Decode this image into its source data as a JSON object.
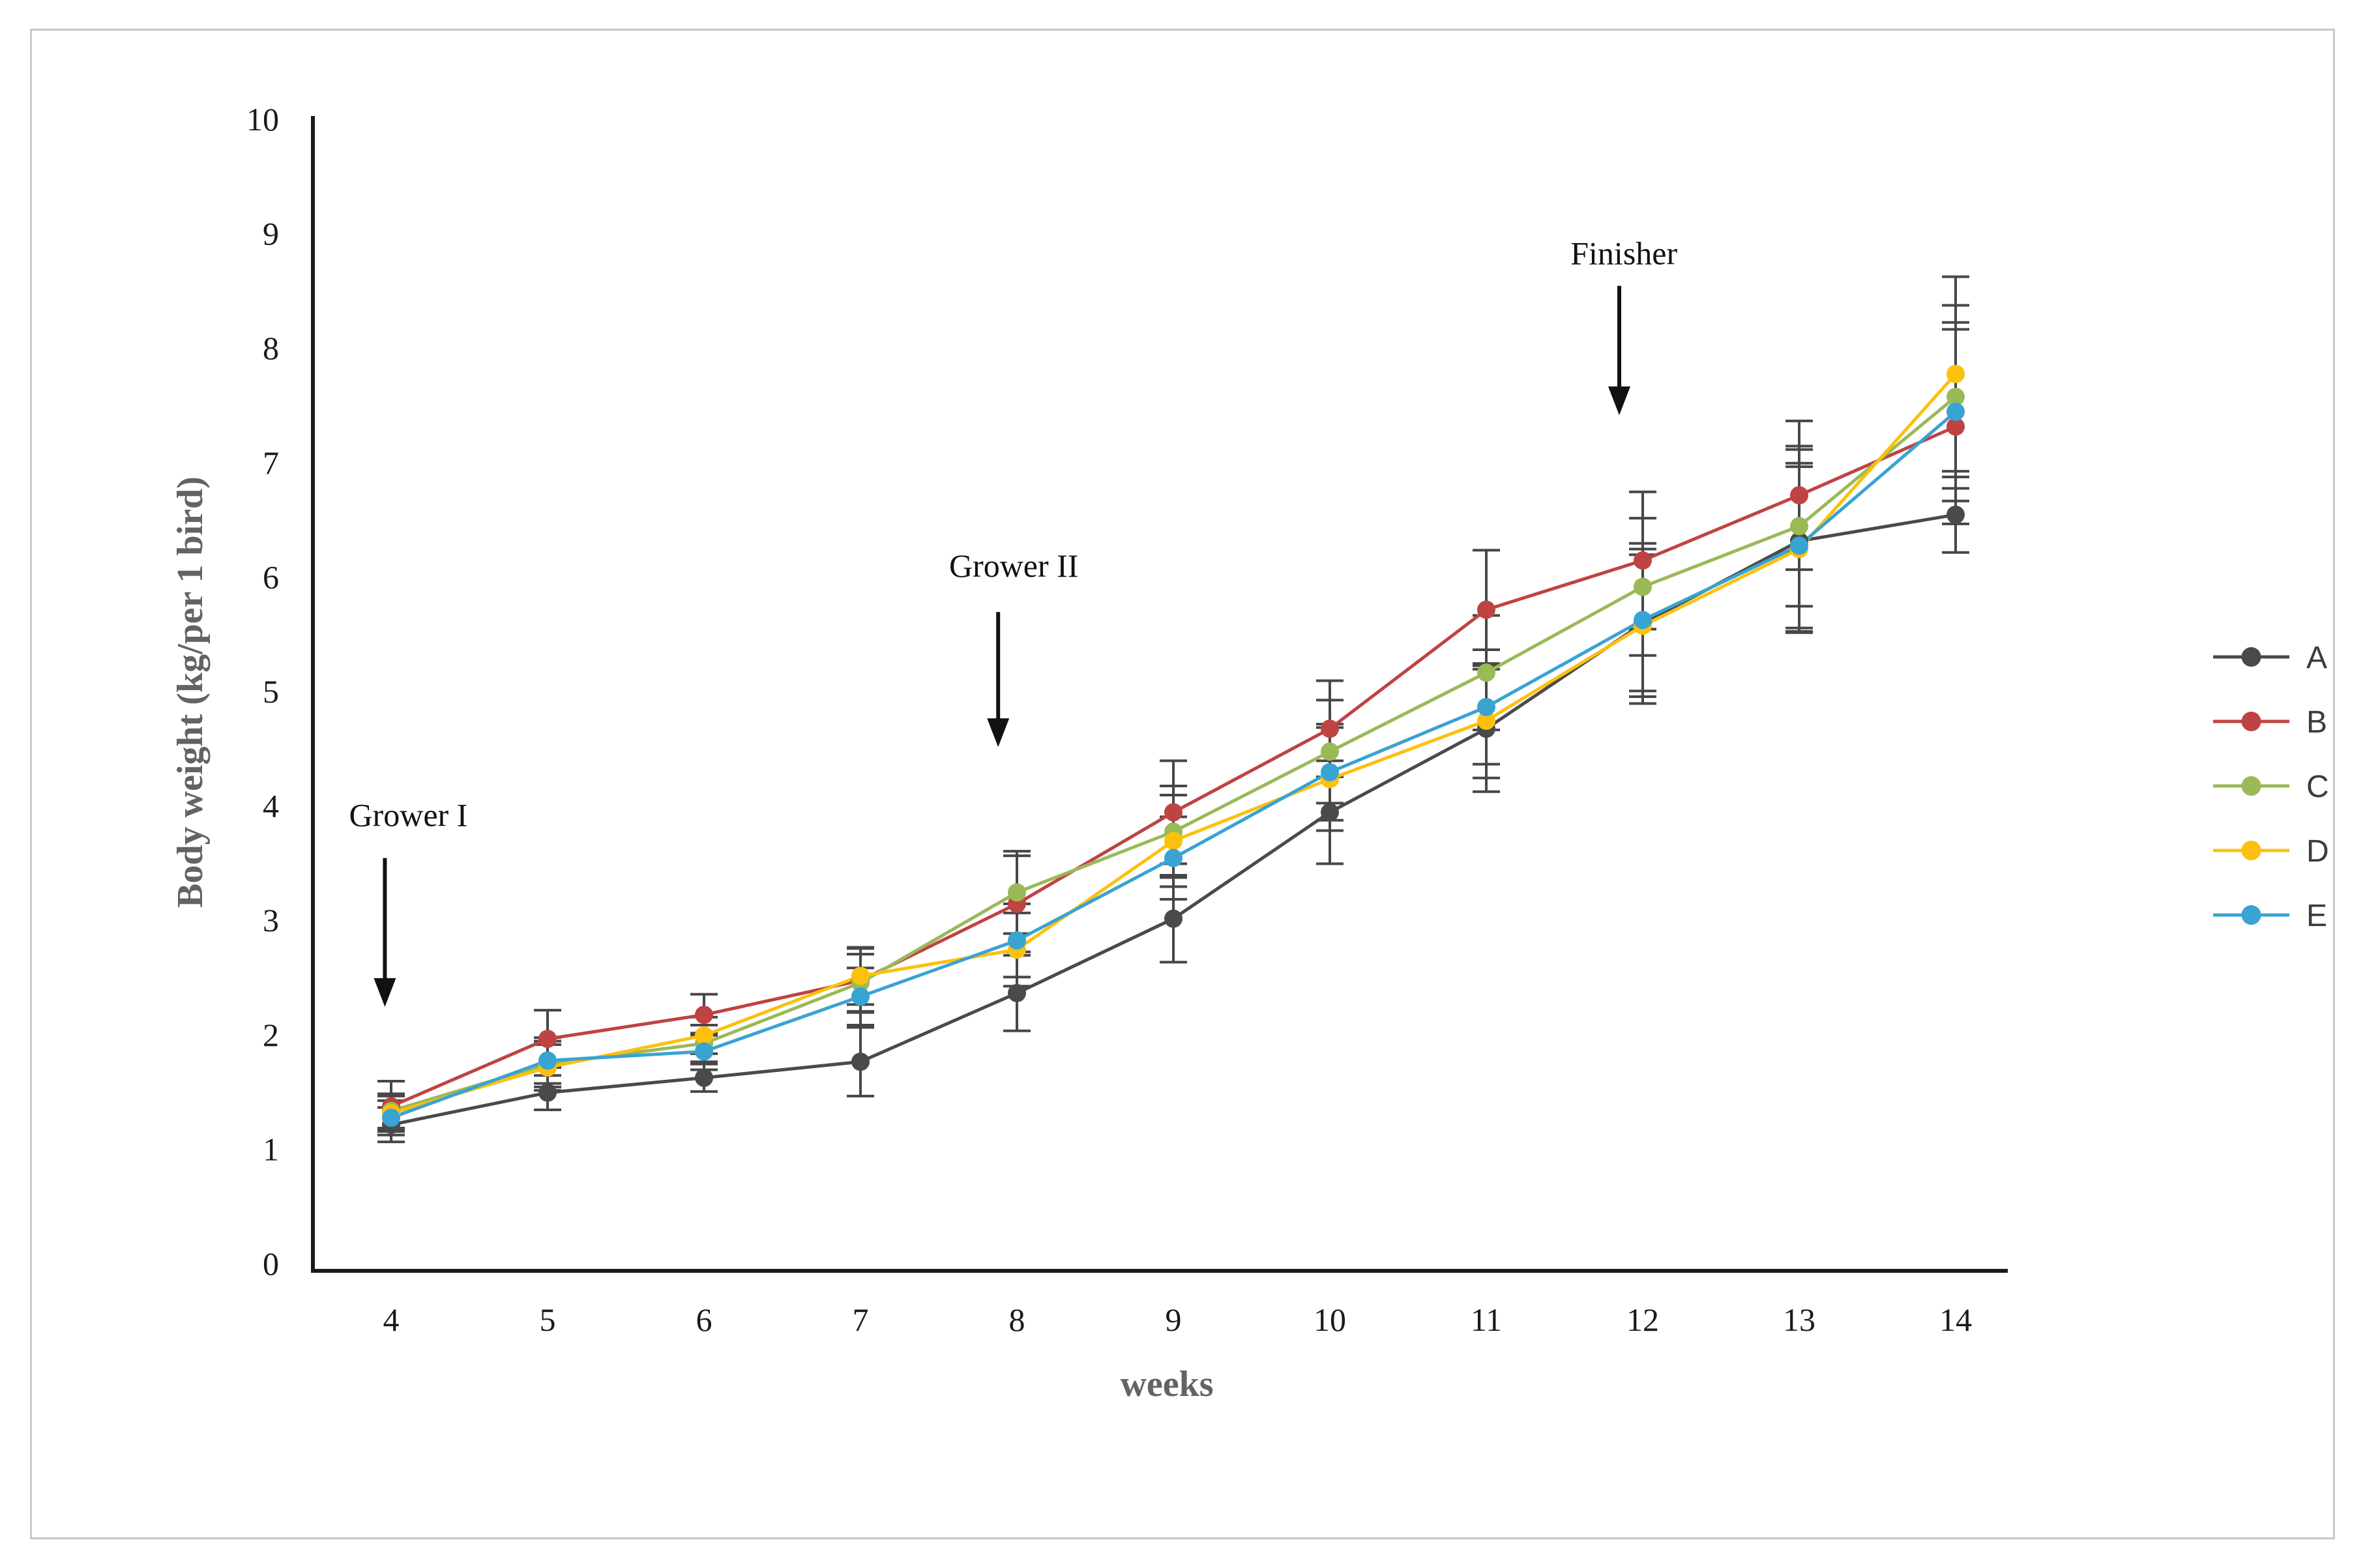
{
  "figure": {
    "background": "#ffffff",
    "frame_border_color": "#c9c9c9"
  },
  "chart_data": {
    "type": "line",
    "x": [
      4,
      5,
      6,
      7,
      8,
      9,
      10,
      11,
      12,
      13,
      14
    ],
    "xlabel": "weeks",
    "ylabel": "Body weight (kg/per 1 bird)",
    "ylim": [
      0,
      10
    ],
    "yticks": [
      0,
      1,
      2,
      3,
      4,
      5,
      6,
      7,
      8,
      9,
      10
    ],
    "grid": false,
    "error_bars": true,
    "legend_position": "right-middle",
    "axis_color": "#1a1a1a",
    "tick_label_color": "#1a1a1a",
    "axis_title_color": "#636363",
    "error_bar_color": "#474747",
    "series": [
      {
        "name": "A",
        "color": "#4a4a4a",
        "values": [
          1.22,
          1.5,
          1.63,
          1.77,
          2.37,
          3.02,
          3.95,
          4.68,
          5.6,
          6.32,
          6.55
        ],
        "errors": [
          0.15,
          0.15,
          0.12,
          0.3,
          0.33,
          0.38,
          0.45,
          0.55,
          0.7,
          0.8,
          0.33
        ]
      },
      {
        "name": "B",
        "color": "#bf4342",
        "values": [
          1.38,
          1.97,
          2.18,
          2.48,
          3.15,
          3.95,
          4.68,
          5.72,
          6.15,
          6.72,
          7.32
        ],
        "errors": [
          0.22,
          0.25,
          0.18,
          0.28,
          0.42,
          0.45,
          0.42,
          0.52,
          0.6,
          0.65,
          0.85
        ]
      },
      {
        "name": "C",
        "color": "#9ab957",
        "values": [
          1.34,
          1.75,
          1.93,
          2.46,
          3.25,
          3.78,
          4.48,
          5.17,
          5.92,
          6.45,
          7.58
        ],
        "errors": [
          0.15,
          0.2,
          0.16,
          0.25,
          0.36,
          0.4,
          0.45,
          0.5,
          0.6,
          0.7,
          0.8
        ]
      },
      {
        "name": "D",
        "color": "#fcc00e",
        "values": [
          1.32,
          1.72,
          2.0,
          2.52,
          2.75,
          3.7,
          4.24,
          4.75,
          5.58,
          6.25,
          7.78
        ],
        "errors": [
          0.15,
          0.2,
          0.16,
          0.25,
          0.32,
          0.4,
          0.45,
          0.5,
          0.62,
          0.72,
          0.85
        ]
      },
      {
        "name": "E",
        "color": "#39a3d2",
        "values": [
          1.28,
          1.78,
          1.86,
          2.34,
          2.83,
          3.55,
          4.3,
          4.87,
          5.63,
          6.28,
          7.45
        ],
        "errors": [
          0.15,
          0.2,
          0.16,
          0.25,
          0.32,
          0.36,
          0.42,
          0.5,
          0.62,
          0.72,
          0.78
        ]
      }
    ],
    "annotations": [
      {
        "label": "Grower I",
        "text_week": 4.11,
        "text_value": 3.92,
        "arrow_week": 3.96,
        "arrow_from_value": 3.55,
        "arrow_to_value": 2.25
      },
      {
        "label": "Grower II",
        "text_week": 7.98,
        "text_value": 6.1,
        "arrow_week": 7.88,
        "arrow_from_value": 5.7,
        "arrow_to_value": 4.52
      },
      {
        "label": "Finisher",
        "text_week": 11.88,
        "text_value": 8.83,
        "arrow_week": 11.85,
        "arrow_from_value": 8.55,
        "arrow_to_value": 7.42
      }
    ]
  }
}
